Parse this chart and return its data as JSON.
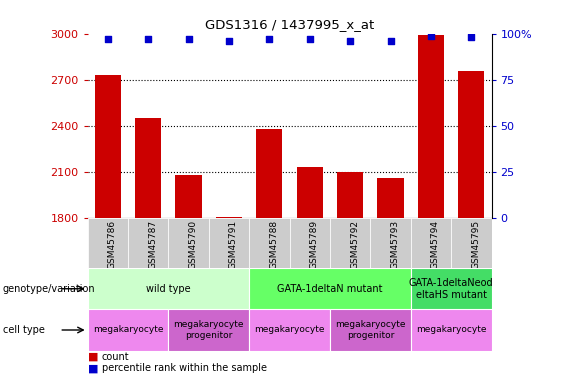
{
  "title": "GDS1316 / 1437995_x_at",
  "samples": [
    "GSM45786",
    "GSM45787",
    "GSM45790",
    "GSM45791",
    "GSM45788",
    "GSM45789",
    "GSM45792",
    "GSM45793",
    "GSM45794",
    "GSM45795"
  ],
  "counts": [
    2730,
    2450,
    2080,
    1805,
    2380,
    2130,
    2095,
    2060,
    2990,
    2760
  ],
  "percentiles": [
    97,
    97,
    97,
    96,
    97,
    97,
    96,
    96,
    99,
    98
  ],
  "bar_bottom": 1800,
  "ylim_left": [
    1800,
    3000
  ],
  "ylim_right": [
    0,
    100
  ],
  "yticks_left": [
    1800,
    2100,
    2400,
    2700,
    3000
  ],
  "yticks_right": [
    0,
    25,
    50,
    75,
    100
  ],
  "bar_color": "#cc0000",
  "dot_color": "#0000cc",
  "genotype_groups": [
    {
      "label": "wild type",
      "start": 0,
      "end": 4,
      "color": "#ccffcc"
    },
    {
      "label": "GATA-1deltaN mutant",
      "start": 4,
      "end": 8,
      "color": "#66ff66"
    },
    {
      "label": "GATA-1deltaNeod\neltaHS mutant",
      "start": 8,
      "end": 10,
      "color": "#44dd66"
    }
  ],
  "cell_type_groups": [
    {
      "label": "megakaryocyte",
      "start": 0,
      "end": 2,
      "color": "#ee88ee"
    },
    {
      "label": "megakaryocyte\nprogenitor",
      "start": 2,
      "end": 4,
      "color": "#cc66cc"
    },
    {
      "label": "megakaryocyte",
      "start": 4,
      "end": 6,
      "color": "#ee88ee"
    },
    {
      "label": "megakaryocyte\nprogenitor",
      "start": 6,
      "end": 8,
      "color": "#cc66cc"
    },
    {
      "label": "megakaryocyte",
      "start": 8,
      "end": 10,
      "color": "#ee88ee"
    }
  ],
  "legend_count_color": "#cc0000",
  "legend_dot_color": "#0000cc",
  "left_label_color": "#cc0000",
  "right_label_color": "#0000cc",
  "gridline_values": [
    2100,
    2400,
    2700
  ],
  "xlabel_bg_color": "#cccccc"
}
